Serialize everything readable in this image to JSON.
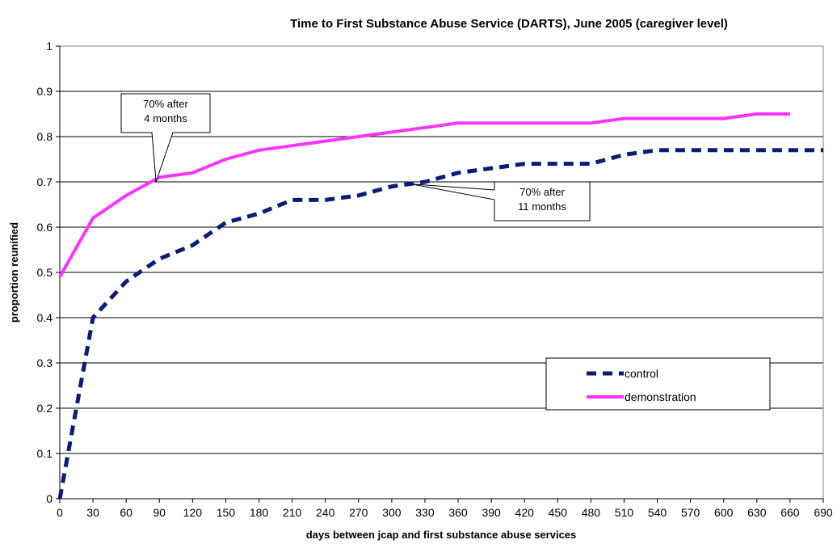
{
  "chart_data": {
    "type": "line",
    "title": "Time to First Substance Abuse Service (DARTS), June 2005 (caregiver level)",
    "xlabel": "days between jcap and first substance abuse services",
    "ylabel": "proportion reunified",
    "xlim": [
      0,
      690
    ],
    "ylim": [
      0,
      1
    ],
    "x_ticks": [
      0,
      30,
      60,
      90,
      120,
      150,
      180,
      210,
      240,
      270,
      300,
      330,
      360,
      390,
      420,
      450,
      480,
      510,
      540,
      570,
      600,
      630,
      660,
      690
    ],
    "y_ticks": [
      0,
      0.1,
      0.2,
      0.3,
      0.4,
      0.5,
      0.6,
      0.7,
      0.8,
      0.9,
      1
    ],
    "grid": "horizontal",
    "legend_position": "right",
    "series": [
      {
        "name": "control",
        "color": "#0a1a78",
        "style": "dashed",
        "points": [
          [
            0,
            0
          ],
          [
            15,
            0.2
          ],
          [
            30,
            0.4
          ],
          [
            60,
            0.48
          ],
          [
            90,
            0.53
          ],
          [
            120,
            0.56
          ],
          [
            150,
            0.61
          ],
          [
            180,
            0.63
          ],
          [
            210,
            0.66
          ],
          [
            240,
            0.66
          ],
          [
            270,
            0.67
          ],
          [
            300,
            0.69
          ],
          [
            330,
            0.7
          ],
          [
            360,
            0.72
          ],
          [
            390,
            0.73
          ],
          [
            420,
            0.74
          ],
          [
            450,
            0.74
          ],
          [
            480,
            0.74
          ],
          [
            510,
            0.76
          ],
          [
            540,
            0.77
          ],
          [
            570,
            0.77
          ],
          [
            600,
            0.77
          ],
          [
            630,
            0.77
          ],
          [
            660,
            0.77
          ],
          [
            690,
            0.77
          ]
        ]
      },
      {
        "name": "demonstration",
        "color": "#ff33ff",
        "style": "solid",
        "points": [
          [
            0,
            0.49
          ],
          [
            30,
            0.62
          ],
          [
            60,
            0.67
          ],
          [
            90,
            0.71
          ],
          [
            120,
            0.72
          ],
          [
            150,
            0.75
          ],
          [
            180,
            0.77
          ],
          [
            210,
            0.78
          ],
          [
            240,
            0.79
          ],
          [
            270,
            0.8
          ],
          [
            300,
            0.81
          ],
          [
            330,
            0.82
          ],
          [
            360,
            0.83
          ],
          [
            390,
            0.83
          ],
          [
            420,
            0.83
          ],
          [
            450,
            0.83
          ],
          [
            480,
            0.83
          ],
          [
            510,
            0.84
          ],
          [
            540,
            0.84
          ],
          [
            570,
            0.84
          ],
          [
            600,
            0.84
          ],
          [
            630,
            0.85
          ],
          [
            660,
            0.85
          ]
        ]
      }
    ],
    "annotations": [
      {
        "lines": [
          "70% after",
          "4 months"
        ],
        "point": [
          87,
          0.7
        ]
      },
      {
        "lines": [
          "70% after",
          "11 months"
        ],
        "point": [
          318,
          0.695
        ]
      }
    ]
  }
}
